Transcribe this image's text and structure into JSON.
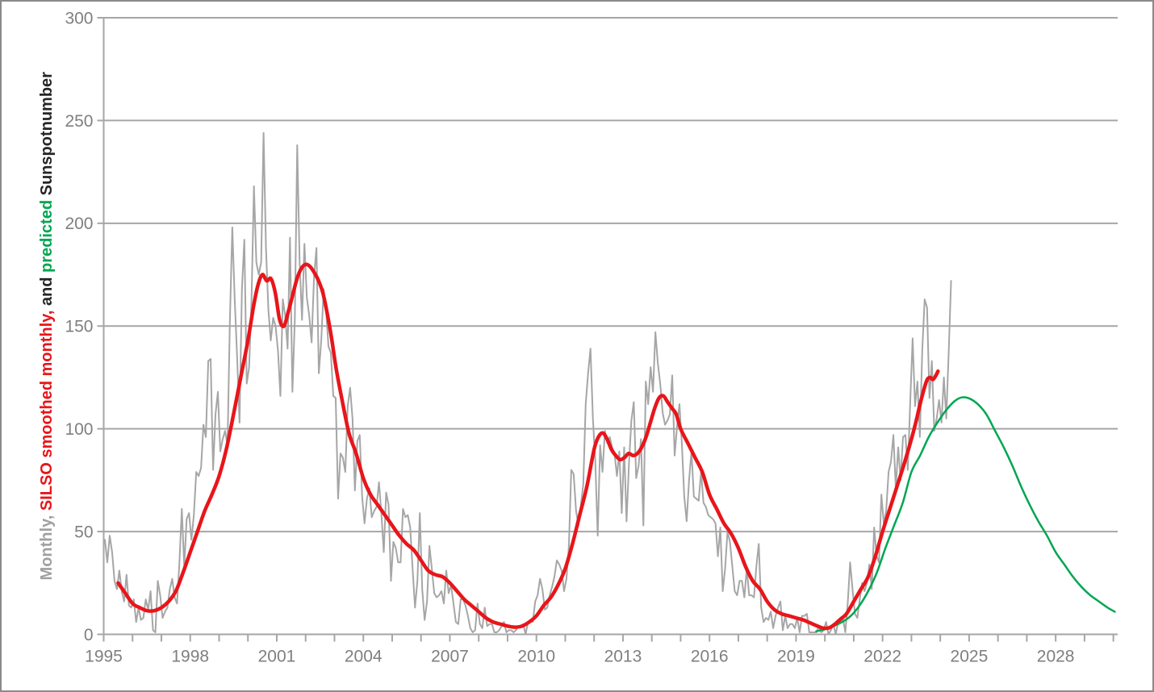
{
  "chart_data": {
    "type": "line",
    "title": "",
    "xlabel": "",
    "ylabel_segments": [
      {
        "text": "Monthly, ",
        "color": "#a0a0a0"
      },
      {
        "text": "SILSO smoothed monthly, ",
        "color": "#e8151a"
      },
      {
        "text": "and ",
        "color": "#262626"
      },
      {
        "text": "predicted ",
        "color": "#00a651"
      },
      {
        "text": "Sunspotnumber",
        "color": "#262626"
      }
    ],
    "x_axis": {
      "min": 1995,
      "max": 2030.15,
      "minor_tick_every_years": 1,
      "tick_labels": [
        "1995",
        "1998",
        "2001",
        "2004",
        "2007",
        "2010",
        "2013",
        "2016",
        "2019",
        "2022",
        "2025",
        "2028"
      ],
      "tick_label_years": [
        1995,
        1998,
        2001,
        2004,
        2007,
        2010,
        2013,
        2016,
        2019,
        2022,
        2025,
        2028
      ]
    },
    "y_axis": {
      "min": 0,
      "max": 300,
      "tick_interval": 50,
      "tick_labels": [
        "0",
        "50",
        "100",
        "150",
        "200",
        "250",
        "300"
      ],
      "tick_values": [
        0,
        50,
        100,
        150,
        200,
        250,
        300
      ]
    },
    "grid": true,
    "legend": "none",
    "colors": {
      "frame_border": "#8a8a8a",
      "grid": "#a6a6a6",
      "axis": "#a6a6a6",
      "tick_label": "#7f7f7f",
      "monthly": "#a6a6a6",
      "smoothed": "#e8151a",
      "predicted": "#00a651",
      "background": "#ffffff"
    },
    "series": [
      {
        "name": "Monthly sunspot number",
        "style": "jagged",
        "color_key": "monthly",
        "stroke_width": 2,
        "start_year": 1995,
        "samples_per_year": 12,
        "values": [
          46,
          35,
          48,
          40,
          26,
          22,
          31,
          21,
          16,
          29,
          14,
          13,
          17,
          6,
          13,
          7,
          8,
          17,
          12,
          21,
          2,
          1,
          26,
          19,
          8,
          11,
          13,
          22,
          27,
          18,
          15,
          35,
          61,
          33,
          56,
          59,
          46,
          58,
          79,
          77,
          81,
          102,
          96,
          133,
          134,
          80,
          107,
          118,
          89,
          95,
          99,
          92,
          153,
          198,
          163,
          135,
          103,
          168,
          192,
          122,
          130,
          163,
          218,
          181,
          175,
          181,
          244,
          188,
          158,
          143,
          154,
          150,
          138,
          116,
          163,
          155,
          139,
          193,
          118,
          153,
          238,
          181,
          153,
          190,
          164,
          155,
          142,
          174,
          188,
          127,
          143,
          168,
          158,
          140,
          137,
          116,
          115,
          66,
          88,
          86,
          79,
          111,
          120,
          105,
          70,
          94,
          97,
          67,
          54,
          66,
          71,
          57,
          60,
          62,
          74,
          59,
          40,
          69,
          63,
          26,
          45,
          42,
          35,
          35,
          61,
          57,
          58,
          52,
          32,
          13,
          26,
          59,
          22,
          7,
          16,
          43,
          32,
          20,
          18,
          19,
          21,
          15,
          31,
          20,
          24,
          15,
          6,
          5,
          17,
          17,
          14,
          9,
          3,
          1,
          2,
          15,
          5,
          3,
          13,
          4,
          5,
          5,
          1,
          1,
          2,
          4,
          6,
          1,
          2,
          2,
          1,
          2,
          4,
          4,
          5,
          0,
          6,
          7,
          6,
          16,
          19,
          27,
          22,
          12,
          13,
          19,
          23,
          28,
          36,
          34,
          31,
          21,
          27,
          43,
          80,
          78,
          60,
          53,
          63,
          73,
          112,
          127,
          139,
          105,
          84,
          48,
          92,
          79,
          99,
          93,
          96,
          91,
          88,
          77,
          89,
          59,
          91,
          55,
          83,
          104,
          113,
          76,
          82,
          95,
          53,
          123,
          112,
          130,
          118,
          147,
          132,
          122,
          108,
          102,
          104,
          107,
          126,
          87,
          101,
          112,
          93,
          67,
          55,
          75,
          89,
          67,
          66,
          65,
          79,
          64,
          62,
          58,
          57,
          56,
          54,
          38,
          52,
          21,
          32,
          50,
          45,
          33,
          21,
          19,
          26,
          26,
          18,
          32,
          19,
          19,
          18,
          33,
          44,
          13,
          6,
          8,
          7,
          11,
          3,
          9,
          13,
          16,
          2,
          9,
          3,
          5,
          5,
          3,
          8,
          1,
          9,
          9,
          10,
          1,
          1,
          1,
          1,
          4,
          1,
          2,
          6,
          0,
          2,
          5,
          0,
          6,
          6,
          8,
          1,
          15,
          35,
          22,
          10,
          8,
          17,
          25,
          21,
          25,
          34,
          22,
          52,
          38,
          35,
          68,
          54,
          60,
          79,
          84,
          97,
          71,
          91,
          75,
          96,
          97,
          80,
          113,
          144,
          111,
          123,
          96,
          138,
          163,
          159,
          115,
          133,
          99,
          105,
          114,
          103,
          125,
          105,
          137,
          172
        ]
      },
      {
        "name": "SILSO smoothed monthly sunspot number",
        "style": "smooth",
        "color_key": "smoothed",
        "stroke_width": 4.5,
        "points": [
          [
            1995.5,
            25
          ],
          [
            1995.75,
            20
          ],
          [
            1996.0,
            15
          ],
          [
            1996.25,
            13
          ],
          [
            1996.5,
            11.5
          ],
          [
            1996.75,
            11.5
          ],
          [
            1997.0,
            13
          ],
          [
            1997.25,
            16
          ],
          [
            1997.5,
            21
          ],
          [
            1997.75,
            30
          ],
          [
            1998.0,
            40
          ],
          [
            1998.25,
            50
          ],
          [
            1998.5,
            60
          ],
          [
            1998.75,
            68
          ],
          [
            1999.0,
            77
          ],
          [
            1999.25,
            90
          ],
          [
            1999.5,
            107
          ],
          [
            1999.75,
            125
          ],
          [
            2000.0,
            143
          ],
          [
            2000.2,
            160
          ],
          [
            2000.35,
            170
          ],
          [
            2000.5,
            175
          ],
          [
            2000.65,
            172
          ],
          [
            2000.8,
            173
          ],
          [
            2000.95,
            166
          ],
          [
            2001.1,
            153
          ],
          [
            2001.25,
            150
          ],
          [
            2001.4,
            157
          ],
          [
            2001.55,
            165
          ],
          [
            2001.7,
            173
          ],
          [
            2001.85,
            178
          ],
          [
            2002.0,
            180
          ],
          [
            2002.15,
            179
          ],
          [
            2002.3,
            176
          ],
          [
            2002.45,
            172
          ],
          [
            2002.6,
            166
          ],
          [
            2002.75,
            156
          ],
          [
            2002.9,
            144
          ],
          [
            2003.05,
            130
          ],
          [
            2003.25,
            115
          ],
          [
            2003.5,
            98
          ],
          [
            2003.75,
            88
          ],
          [
            2004.0,
            76
          ],
          [
            2004.25,
            68
          ],
          [
            2004.5,
            63
          ],
          [
            2004.75,
            58
          ],
          [
            2005.0,
            53
          ],
          [
            2005.25,
            48
          ],
          [
            2005.5,
            44
          ],
          [
            2005.75,
            41
          ],
          [
            2006.0,
            36
          ],
          [
            2006.25,
            31
          ],
          [
            2006.5,
            29
          ],
          [
            2006.75,
            28
          ],
          [
            2007.0,
            25
          ],
          [
            2007.25,
            21
          ],
          [
            2007.5,
            17
          ],
          [
            2007.75,
            14
          ],
          [
            2008.0,
            11
          ],
          [
            2008.25,
            8
          ],
          [
            2008.5,
            6
          ],
          [
            2008.75,
            5
          ],
          [
            2009.0,
            4
          ],
          [
            2009.25,
            3.5
          ],
          [
            2009.5,
            4
          ],
          [
            2009.75,
            6
          ],
          [
            2010.0,
            9
          ],
          [
            2010.25,
            14
          ],
          [
            2010.5,
            18
          ],
          [
            2010.75,
            24
          ],
          [
            2011.0,
            32
          ],
          [
            2011.25,
            44
          ],
          [
            2011.5,
            58
          ],
          [
            2011.75,
            72
          ],
          [
            2012.0,
            90
          ],
          [
            2012.15,
            96
          ],
          [
            2012.3,
            98
          ],
          [
            2012.45,
            95
          ],
          [
            2012.6,
            90
          ],
          [
            2012.75,
            87
          ],
          [
            2012.9,
            85
          ],
          [
            2013.05,
            86
          ],
          [
            2013.2,
            88
          ],
          [
            2013.35,
            87
          ],
          [
            2013.5,
            88
          ],
          [
            2013.65,
            91
          ],
          [
            2013.8,
            96
          ],
          [
            2013.95,
            103
          ],
          [
            2014.1,
            110
          ],
          [
            2014.25,
            115
          ],
          [
            2014.4,
            116
          ],
          [
            2014.55,
            113
          ],
          [
            2014.7,
            110
          ],
          [
            2014.85,
            107
          ],
          [
            2015.0,
            100
          ],
          [
            2015.25,
            93
          ],
          [
            2015.5,
            86
          ],
          [
            2015.75,
            79
          ],
          [
            2016.0,
            68
          ],
          [
            2016.25,
            61
          ],
          [
            2016.5,
            54
          ],
          [
            2016.75,
            49
          ],
          [
            2017.0,
            42
          ],
          [
            2017.25,
            33
          ],
          [
            2017.5,
            26
          ],
          [
            2017.75,
            22
          ],
          [
            2018.0,
            16
          ],
          [
            2018.25,
            12
          ],
          [
            2018.5,
            10
          ],
          [
            2018.75,
            9
          ],
          [
            2019.0,
            8
          ],
          [
            2019.25,
            7
          ],
          [
            2019.5,
            5.5
          ],
          [
            2019.75,
            4
          ],
          [
            2019.95,
            3
          ],
          [
            2020.15,
            3.2
          ],
          [
            2020.35,
            5
          ],
          [
            2020.55,
            7.5
          ],
          [
            2020.75,
            10
          ],
          [
            2021.0,
            16
          ],
          [
            2021.25,
            22
          ],
          [
            2021.5,
            28
          ],
          [
            2021.75,
            38
          ],
          [
            2022.0,
            50
          ],
          [
            2022.25,
            61
          ],
          [
            2022.5,
            72
          ],
          [
            2022.75,
            83
          ],
          [
            2023.0,
            95
          ],
          [
            2023.15,
            103
          ],
          [
            2023.3,
            112
          ],
          [
            2023.45,
            120
          ],
          [
            2023.55,
            124
          ],
          [
            2023.65,
            125
          ],
          [
            2023.75,
            124
          ],
          [
            2023.85,
            126
          ],
          [
            2023.92,
            128
          ]
        ]
      },
      {
        "name": "Predicted sunspot number",
        "style": "smooth",
        "color_key": "predicted",
        "stroke_width": 2.5,
        "points": [
          [
            2019.7,
            1.5
          ],
          [
            2020.0,
            2.5
          ],
          [
            2020.3,
            4
          ],
          [
            2020.6,
            6
          ],
          [
            2020.9,
            9
          ],
          [
            2021.2,
            14
          ],
          [
            2021.5,
            21
          ],
          [
            2021.8,
            30
          ],
          [
            2022.1,
            42
          ],
          [
            2022.4,
            53
          ],
          [
            2022.7,
            64
          ],
          [
            2023.0,
            79
          ],
          [
            2023.3,
            87
          ],
          [
            2023.6,
            96
          ],
          [
            2023.9,
            103
          ],
          [
            2024.2,
            109
          ],
          [
            2024.5,
            113.5
          ],
          [
            2024.75,
            115.3
          ],
          [
            2025.0,
            114.8
          ],
          [
            2025.3,
            112
          ],
          [
            2025.6,
            107
          ],
          [
            2025.9,
            99
          ],
          [
            2026.2,
            91
          ],
          [
            2026.5,
            82
          ],
          [
            2026.8,
            72
          ],
          [
            2027.1,
            63
          ],
          [
            2027.4,
            55
          ],
          [
            2027.7,
            48
          ],
          [
            2028.0,
            40
          ],
          [
            2028.3,
            34
          ],
          [
            2028.6,
            28
          ],
          [
            2028.9,
            23
          ],
          [
            2029.2,
            19
          ],
          [
            2029.5,
            16
          ],
          [
            2029.8,
            13
          ],
          [
            2030.05,
            11
          ]
        ]
      }
    ]
  }
}
